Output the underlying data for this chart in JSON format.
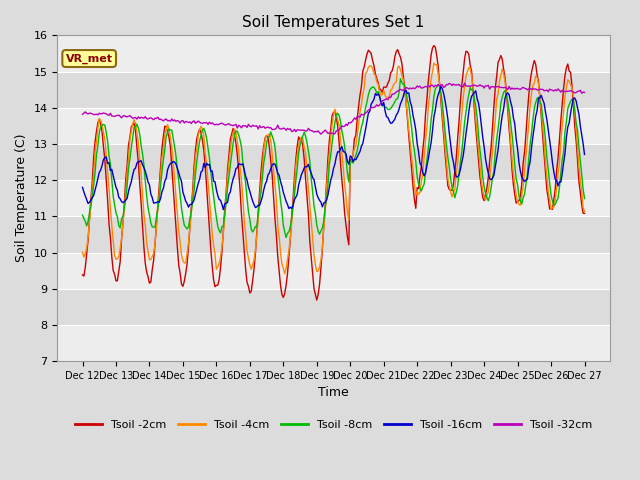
{
  "title": "Soil Temperatures Set 1",
  "xlabel": "Time",
  "ylabel": "Soil Temperature (C)",
  "ylim": [
    7.0,
    16.0
  ],
  "yticks": [
    7.0,
    8.0,
    9.0,
    10.0,
    11.0,
    12.0,
    13.0,
    14.0,
    15.0,
    16.0
  ],
  "bg_color": "#dcdcdc",
  "plot_bg_color": "#dcdcdc",
  "grid_color": "#ffffff",
  "annotation_text": "VR_met",
  "annotation_bg": "#ffff99",
  "annotation_border": "#8B6914",
  "series_names": [
    "Tsoil -2cm",
    "Tsoil -4cm",
    "Tsoil -8cm",
    "Tsoil -16cm",
    "Tsoil -32cm"
  ],
  "colors": [
    "#cc0000",
    "#ff8800",
    "#00bb00",
    "#0000cc",
    "#bb00bb"
  ],
  "date_start": "2000-12-12",
  "date_end": "2000-12-27",
  "xtick_labels": [
    "Dec 12",
    "Dec 13",
    "Dec 14",
    "Dec 15",
    "Dec 16",
    "Dec 17",
    "Dec 18",
    "Dec 19",
    "Dec 20",
    "Dec 21",
    "Dec 22",
    "Dec 23",
    "Dec 24",
    "Dec 25",
    "Dec 26",
    "Dec 27"
  ]
}
